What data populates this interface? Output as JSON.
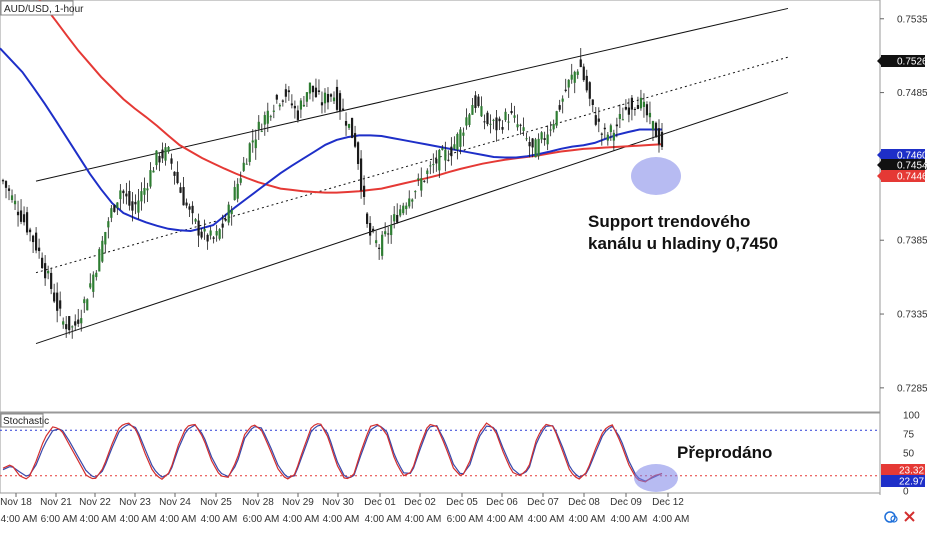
{
  "symbol_label": "AUD/USD, 1-hour",
  "stochastic_label": "Stochastic",
  "annotations": {
    "support": [
      "Support trendového",
      "kanálu u hladiny 0,7450"
    ],
    "oversold": "Přeprodáno"
  },
  "colors": {
    "candle_up": "#2e7d32",
    "candle_down": "#1b1b1b",
    "ma_slow": "#e53935",
    "ma_fast": "#1e2fc8",
    "channel": "#111111",
    "stoch_k": "#d32f2f",
    "stoch_d": "#3949ab",
    "highlight": "#7b84e8",
    "stoch_upper_level": "#2b3bd6",
    "stoch_lower_level": "#e53935"
  },
  "price_tags": [
    {
      "text": "0.7526",
      "bg": "#111111"
    },
    {
      "text": "0.7460",
      "bg": "#1e2fc8"
    },
    {
      "text": "0.7454",
      "bg": "#111111"
    },
    {
      "text": "0.7446",
      "bg": "#e53935"
    }
  ],
  "stoch_tags": [
    {
      "text": "23.32",
      "bg": "#e53935"
    },
    {
      "text": "22.97",
      "bg": "#1e2fc8"
    }
  ],
  "chart_data": {
    "type": "candlestick",
    "title": "AUD/USD, 1-hour",
    "price_axis": {
      "ticks": [
        "0.7535",
        "0.7485",
        "0.7435",
        "0.7385",
        "0.7335",
        "0.7285"
      ],
      "ylim": [
        0.727,
        0.7545
      ]
    },
    "stochastic_axis": {
      "ticks": [
        "100",
        "75",
        "50",
        "25",
        "0"
      ],
      "ylim": [
        0,
        100
      ],
      "levels": [
        80,
        20
      ]
    },
    "x_dates": [
      "Nov 18",
      "Nov 21",
      "Nov 22",
      "Nov 23",
      "Nov 24",
      "Nov 25",
      "Nov 28",
      "Nov 29",
      "Nov 30",
      "Dec 01",
      "Dec 02",
      "Dec 05",
      "Dec 06",
      "Dec 07",
      "Dec 08",
      "Dec 09",
      "Dec 12"
    ],
    "x_times": [
      "4:00 AM",
      "6:00 AM",
      "4:00 AM",
      "4:00 AM",
      "4:00 AM",
      "4:00 AM",
      "6:00 AM",
      "4:00 AM",
      "4:00 AM",
      "4:00 AM",
      "4:00 AM",
      "6:00 AM",
      "4:00 AM",
      "4:00 AM",
      "4:00 AM",
      "4:00 AM",
      "4:00 AM"
    ],
    "close_path": [
      0.7425,
      0.741,
      0.7395,
      0.7378,
      0.7355,
      0.733,
      0.7325,
      0.7345,
      0.737,
      0.74,
      0.742,
      0.7405,
      0.742,
      0.744,
      0.7445,
      0.742,
      0.74,
      0.7388,
      0.7385,
      0.74,
      0.7425,
      0.745,
      0.7465,
      0.7478,
      0.7485,
      0.747,
      0.749,
      0.7478,
      0.7485,
      0.747,
      0.745,
      0.739,
      0.738,
      0.7395,
      0.741,
      0.742,
      0.743,
      0.744,
      0.7445,
      0.746,
      0.748,
      0.7465,
      0.7462,
      0.747,
      0.746,
      0.7445,
      0.7455,
      0.747,
      0.749,
      0.7505,
      0.7475,
      0.7455,
      0.746,
      0.7475,
      0.748,
      0.7465,
      0.745
    ],
    "ma_slow_path": [
      0.758,
      0.756,
      0.7538,
      0.7515,
      0.7495,
      0.7478,
      0.7465,
      0.745,
      0.744,
      0.7432,
      0.7425,
      0.742,
      0.7418,
      0.7417,
      0.7418,
      0.742,
      0.7424,
      0.7428,
      0.7433,
      0.7437,
      0.744,
      0.7442,
      0.7445,
      0.7447,
      0.7448,
      0.7449,
      0.745
    ],
    "ma_fast_path": [
      0.7515,
      0.7498,
      0.7475,
      0.745,
      0.7425,
      0.7405,
      0.7398,
      0.7393,
      0.7391,
      0.7395,
      0.7408,
      0.742,
      0.7432,
      0.7442,
      0.7452,
      0.7456,
      0.7456,
      0.7453,
      0.745,
      0.7447,
      0.7444,
      0.7441,
      0.7441,
      0.7444,
      0.7448,
      0.745,
      0.7456,
      0.746,
      0.746
    ],
    "channel_lines": [
      {
        "name": "upper",
        "from": [
          "Nov 21",
          0.7425
        ],
        "to": [
          "Dec 12",
          0.7542
        ]
      },
      {
        "name": "middle",
        "from": [
          "Nov 21",
          0.7363
        ],
        "to": [
          "Dec 12",
          0.7509
        ]
      },
      {
        "name": "lower",
        "from": [
          "Nov 21",
          0.7315
        ],
        "to": [
          "Dec 12",
          0.7485
        ]
      }
    ],
    "stoch_k_path": [
      30,
      35,
      20,
      15,
      40,
      70,
      85,
      80,
      60,
      40,
      20,
      15,
      30,
      60,
      85,
      90,
      80,
      50,
      25,
      15,
      25,
      60,
      85,
      88,
      70,
      40,
      20,
      18,
      40,
      75,
      88,
      80,
      55,
      28,
      15,
      22,
      55,
      85,
      90,
      70,
      35,
      15,
      20,
      55,
      85,
      88,
      75,
      40,
      20,
      25,
      60,
      88,
      85,
      60,
      30,
      18,
      40,
      75,
      90,
      80,
      50,
      25,
      20,
      30,
      70,
      88,
      85,
      55,
      25,
      15,
      25,
      55,
      80,
      88,
      65,
      35,
      15,
      12,
      20,
      23
    ],
    "stoch_d_path": [
      28,
      33,
      25,
      18,
      35,
      62,
      80,
      82,
      65,
      45,
      26,
      17,
      27,
      55,
      80,
      88,
      83,
      56,
      30,
      18,
      23,
      55,
      80,
      87,
      74,
      45,
      24,
      19,
      35,
      70,
      85,
      83,
      60,
      33,
      18,
      20,
      50,
      80,
      88,
      75,
      40,
      18,
      18,
      50,
      80,
      87,
      79,
      45,
      24,
      23,
      55,
      84,
      86,
      65,
      35,
      20,
      35,
      70,
      86,
      83,
      55,
      30,
      21,
      27,
      65,
      85,
      86,
      60,
      30,
      18,
      23,
      50,
      76,
      86,
      70,
      40,
      18,
      13,
      18,
      23
    ]
  }
}
